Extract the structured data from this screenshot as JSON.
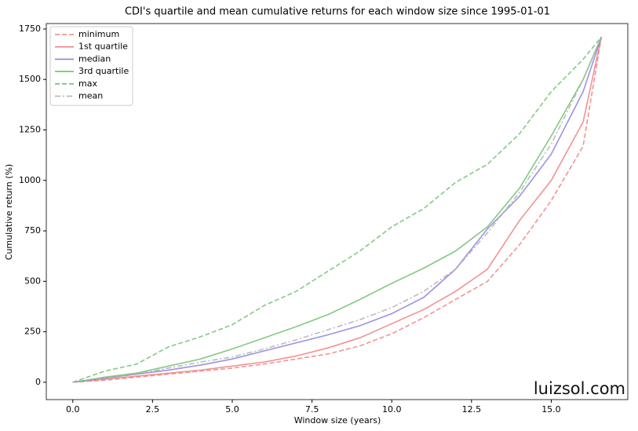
{
  "chart_data": {
    "type": "line",
    "title": "CDI's quartile and mean cumulative returns for each window size since 1995-01-01",
    "xlabel": "Window size (years)",
    "ylabel": "Cumulative return (%)",
    "watermark": "luizsol.com",
    "x": [
      0,
      1,
      2,
      3,
      4,
      5,
      6,
      7,
      8,
      9,
      10,
      11,
      12,
      13,
      14,
      15,
      16,
      16.57
    ],
    "series": [
      {
        "name": "minimum",
        "color": "#f08080",
        "linestyle": "dashed",
        "values": [
          0,
          10,
          25,
          40,
          55,
          70,
          90,
          115,
          140,
          180,
          240,
          320,
          410,
          500,
          680,
          900,
          1170,
          1710
        ]
      },
      {
        "name": "1st quartile",
        "color": "#f08080",
        "linestyle": "solid",
        "values": [
          0,
          15,
          30,
          45,
          60,
          80,
          100,
          130,
          170,
          220,
          290,
          360,
          450,
          560,
          800,
          1000,
          1290,
          1710
        ]
      },
      {
        "name": "median",
        "color": "#8a7fe0",
        "linestyle": "solid",
        "values": [
          0,
          20,
          40,
          60,
          85,
          115,
          155,
          195,
          235,
          280,
          340,
          420,
          560,
          760,
          920,
          1130,
          1440,
          1710
        ]
      },
      {
        "name": "3rd quartile",
        "color": "#6fbf6f",
        "linestyle": "solid",
        "values": [
          0,
          25,
          45,
          80,
          115,
          165,
          220,
          275,
          335,
          410,
          490,
          565,
          650,
          770,
          960,
          1220,
          1500,
          1710
        ]
      },
      {
        "name": "max",
        "color": "#6fbf6f",
        "linestyle": "dashed",
        "values": [
          0,
          55,
          90,
          175,
          225,
          285,
          380,
          450,
          550,
          650,
          770,
          860,
          990,
          1080,
          1230,
          1440,
          1600,
          1710
        ]
      },
      {
        "name": "mean",
        "color": "#b0b0b0",
        "linestyle": "dashdot",
        "values": [
          0,
          20,
          40,
          70,
          100,
          125,
          165,
          210,
          260,
          310,
          370,
          450,
          560,
          740,
          940,
          1180,
          1500,
          1710
        ]
      }
    ],
    "xlim": [
      -0.83,
      17.4
    ],
    "ylim": [
      -86,
      1777
    ],
    "xticks": [
      {
        "value": 0,
        "label": "0.0"
      },
      {
        "value": 2.5,
        "label": "2.5"
      },
      {
        "value": 5,
        "label": "5.0"
      },
      {
        "value": 7.5,
        "label": "7.5"
      },
      {
        "value": 10,
        "label": "10.0"
      },
      {
        "value": 12.5,
        "label": "12.5"
      },
      {
        "value": 15,
        "label": "15.0"
      }
    ],
    "yticks": [
      0,
      250,
      500,
      750,
      1000,
      1250,
      1500,
      1750
    ],
    "legend": "upper left",
    "grid": false
  }
}
